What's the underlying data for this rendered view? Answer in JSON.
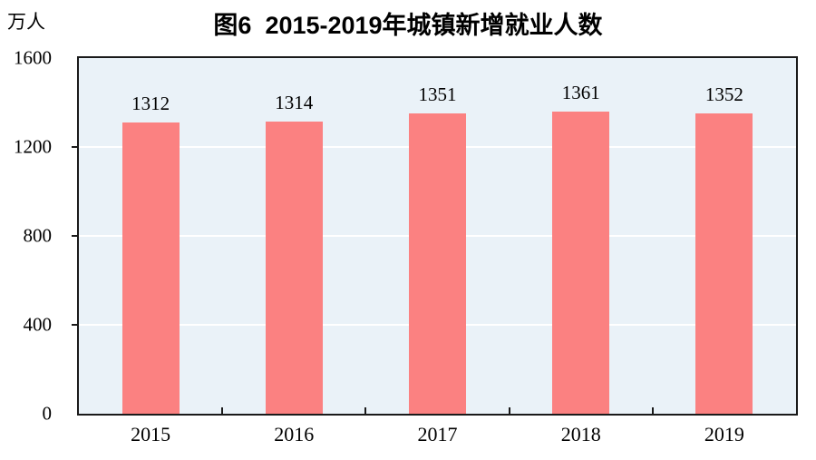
{
  "chart_data": {
    "type": "bar",
    "title": "图6  2015-2019年城镇新增就业人数",
    "ylabel": "万人",
    "xlabel": "",
    "categories": [
      "2015",
      "2016",
      "2017",
      "2018",
      "2019"
    ],
    "values": [
      1312,
      1314,
      1351,
      1361,
      1352
    ],
    "ylim": [
      0,
      1600
    ],
    "yticks": [
      0,
      400,
      800,
      1200,
      1600
    ],
    "grid": true,
    "legend_position": "none",
    "colors": {
      "bar": "#FB8181",
      "plot_bg": "#EAF2F8",
      "grid": "#FFFFFF",
      "axis_border": "#1A1A1A",
      "text": "#000000"
    }
  }
}
